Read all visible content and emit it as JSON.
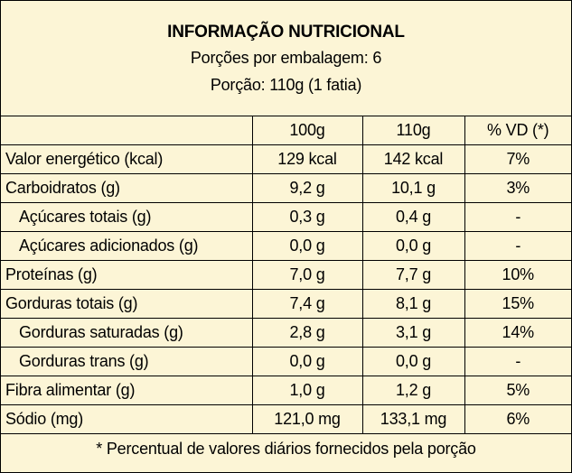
{
  "title": "INFORMAÇÃO NUTRICIONAL",
  "servings_per_package": "Porções por embalagem: 6",
  "serving_size": "Porção: 110g (1 fatia)",
  "columns": [
    "",
    "100g",
    "110g",
    "% VD (*)"
  ],
  "rows": [
    {
      "name": "Valor energético (kcal)",
      "per100": "129 kcal",
      "per110": "142 kcal",
      "vd": "7%"
    },
    {
      "name": "Carboidratos (g)",
      "per100": "9,2 g",
      "per110": "10,1 g",
      "vd": "3%"
    },
    {
      "name": "Açúcares totais (g)",
      "per100": "0,3 g",
      "per110": "0,4 g",
      "vd": "-"
    },
    {
      "name": "Açúcares adicionados (g)",
      "per100": "0,0 g",
      "per110": "0,0 g",
      "vd": "-"
    },
    {
      "name": "Proteínas (g)",
      "per100": "7,0 g",
      "per110": "7,7 g",
      "vd": "10%"
    },
    {
      "name": "Gorduras totais (g)",
      "per100": "7,4 g",
      "per110": "8,1 g",
      "vd": "15%"
    },
    {
      "name": "Gorduras saturadas (g)",
      "per100": "2,8 g",
      "per110": "3,1 g",
      "vd": "14%"
    },
    {
      "name": "Gorduras trans (g)",
      "per100": "0,0 g",
      "per110": "0,0 g",
      "vd": "-"
    },
    {
      "name": "Fibra alimentar (g)",
      "per100": "1,0 g",
      "per110": "1,2 g",
      "vd": "5%"
    },
    {
      "name": "Sódio (mg)",
      "per100": "121,0 mg",
      "per110": "133,1 mg",
      "vd": "6%"
    }
  ],
  "footnote": "* Percentual de valores diários fornecidos pela porção",
  "colors": {
    "background": "#fcf5d6",
    "border": "#000000",
    "text": "#000000"
  }
}
